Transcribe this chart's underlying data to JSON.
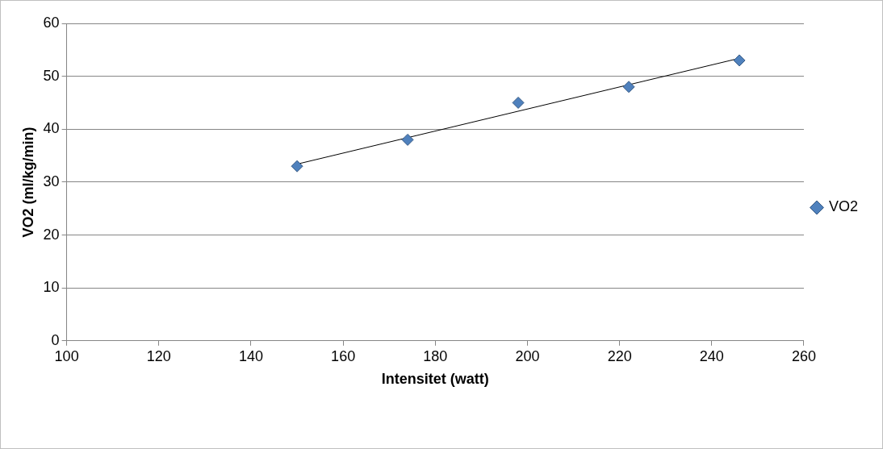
{
  "chart_data": {
    "type": "scatter",
    "xlabel": "Intensitet (watt)",
    "ylabel": "VO2 (ml/kg/min)",
    "xlim": [
      100,
      260
    ],
    "xticks": [
      100,
      120,
      140,
      160,
      180,
      200,
      220,
      240,
      260
    ],
    "ylim": [
      0,
      60
    ],
    "yticks": [
      0,
      10,
      20,
      30,
      40,
      50,
      60
    ],
    "grid": "y",
    "legend": "right",
    "marker": "diamond",
    "series": [
      {
        "name": "VO2",
        "color": "#4f81bd",
        "x": [
          150,
          174,
          198,
          222,
          246
        ],
        "values": [
          33,
          38,
          45,
          48,
          53
        ]
      },
      {
        "type": "line",
        "color": "#000000",
        "x": [
          150,
          246
        ],
        "values": [
          33.4,
          53.4
        ],
        "marker": "none"
      }
    ]
  }
}
